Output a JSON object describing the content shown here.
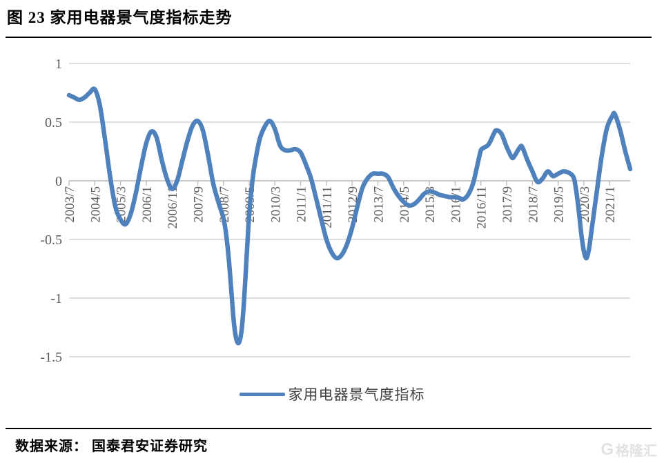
{
  "title": "图 23 家用电器景气度指标走势",
  "legend": {
    "label": "家用电器景气度指标"
  },
  "footer": {
    "source": "数据来源： 国泰君安证券研究"
  },
  "watermark": {
    "logo": "G",
    "text": "格隆汇"
  },
  "colors": {
    "line": "#4f81bd",
    "grid": "#d9d9d9",
    "zero_axis": "#bfbfbf",
    "tick_text": "#595959",
    "legend_text": "#404040",
    "watermark": "#e2e2e2"
  },
  "chart_data": {
    "type": "line",
    "title": "家用电器景气度指标走势",
    "xlabel": "",
    "ylabel": "",
    "ylim": [
      -1.5,
      1
    ],
    "yticks": [
      1,
      0.5,
      0,
      -0.5,
      -1,
      -1.5
    ],
    "grid": "horizontal",
    "legend_position": "bottom",
    "x_range": [
      "2003/7",
      "2021/9"
    ],
    "x_tick_labels": [
      "2003/7",
      "2004/5",
      "2005/3",
      "2006/1",
      "2006/11",
      "2007/9",
      "2008/7",
      "2009/5",
      "2010/3",
      "2011/1",
      "2011/11",
      "2012/9",
      "2013/7",
      "2014/5",
      "2015/3",
      "2016/1",
      "2016/11",
      "2017/9",
      "2018/7",
      "2019/5",
      "2020/3",
      "2021/1"
    ],
    "series": [
      {
        "name": "家用电器景气度指标",
        "points": [
          [
            "2003/7",
            0.73
          ],
          [
            "2003/9",
            0.71
          ],
          [
            "2003/11",
            0.69
          ],
          [
            "2004/1",
            0.71
          ],
          [
            "2004/3",
            0.75
          ],
          [
            "2004/5",
            0.78
          ],
          [
            "2004/7",
            0.64
          ],
          [
            "2004/9",
            0.35
          ],
          [
            "2004/11",
            0.03
          ],
          [
            "2005/1",
            -0.22
          ],
          [
            "2005/3",
            -0.33
          ],
          [
            "2005/5",
            -0.37
          ],
          [
            "2005/7",
            -0.28
          ],
          [
            "2005/9",
            -0.1
          ],
          [
            "2005/11",
            0.12
          ],
          [
            "2006/1",
            0.32
          ],
          [
            "2006/3",
            0.42
          ],
          [
            "2006/5",
            0.37
          ],
          [
            "2006/7",
            0.18
          ],
          [
            "2006/9",
            0.02
          ],
          [
            "2006/11",
            -0.07
          ],
          [
            "2007/1",
            0.0
          ],
          [
            "2007/3",
            0.17
          ],
          [
            "2007/5",
            0.34
          ],
          [
            "2007/7",
            0.47
          ],
          [
            "2007/9",
            0.51
          ],
          [
            "2007/11",
            0.43
          ],
          [
            "2008/1",
            0.22
          ],
          [
            "2008/3",
            -0.02
          ],
          [
            "2008/5",
            -0.18
          ],
          [
            "2008/7",
            -0.32
          ],
          [
            "2008/8",
            -0.45
          ],
          [
            "2008/9",
            -0.65
          ],
          [
            "2008/10",
            -0.92
          ],
          [
            "2008/11",
            -1.2
          ],
          [
            "2008/12",
            -1.35
          ],
          [
            "2009/1",
            -1.38
          ],
          [
            "2009/2",
            -1.28
          ],
          [
            "2009/3",
            -1.02
          ],
          [
            "2009/4",
            -0.65
          ],
          [
            "2009/5",
            -0.28
          ],
          [
            "2009/6",
            -0.05
          ],
          [
            "2009/7",
            0.12
          ],
          [
            "2009/9",
            0.35
          ],
          [
            "2009/11",
            0.46
          ],
          [
            "2010/1",
            0.51
          ],
          [
            "2010/3",
            0.44
          ],
          [
            "2010/5",
            0.3
          ],
          [
            "2010/7",
            0.26
          ],
          [
            "2010/9",
            0.26
          ],
          [
            "2010/11",
            0.27
          ],
          [
            "2011/1",
            0.24
          ],
          [
            "2011/3",
            0.14
          ],
          [
            "2011/5",
            0.02
          ],
          [
            "2011/7",
            -0.15
          ],
          [
            "2011/9",
            -0.33
          ],
          [
            "2011/11",
            -0.5
          ],
          [
            "2012/1",
            -0.61
          ],
          [
            "2012/3",
            -0.66
          ],
          [
            "2012/5",
            -0.63
          ],
          [
            "2012/7",
            -0.54
          ],
          [
            "2012/9",
            -0.4
          ],
          [
            "2012/11",
            -0.22
          ],
          [
            "2013/1",
            -0.06
          ],
          [
            "2013/3",
            0.02
          ],
          [
            "2013/5",
            0.06
          ],
          [
            "2013/7",
            0.06
          ],
          [
            "2013/9",
            0.06
          ],
          [
            "2013/11",
            0.03
          ],
          [
            "2014/1",
            -0.06
          ],
          [
            "2014/3",
            -0.13
          ],
          [
            "2014/5",
            -0.18
          ],
          [
            "2014/7",
            -0.21
          ],
          [
            "2014/9",
            -0.2
          ],
          [
            "2014/11",
            -0.16
          ],
          [
            "2015/1",
            -0.11
          ],
          [
            "2015/3",
            -0.09
          ],
          [
            "2015/5",
            -0.1
          ],
          [
            "2015/7",
            -0.12
          ],
          [
            "2015/9",
            -0.13
          ],
          [
            "2015/11",
            -0.14
          ],
          [
            "2016/1",
            -0.14
          ],
          [
            "2016/3",
            -0.15
          ],
          [
            "2016/4",
            -0.16
          ],
          [
            "2016/6",
            -0.12
          ],
          [
            "2016/8",
            -0.02
          ],
          [
            "2016/10",
            0.17
          ],
          [
            "2016/11",
            0.26
          ],
          [
            "2016/12",
            0.28
          ],
          [
            "2017/2",
            0.31
          ],
          [
            "2017/4",
            0.4
          ],
          [
            "2017/5",
            0.43
          ],
          [
            "2017/7",
            0.4
          ],
          [
            "2017/9",
            0.29
          ],
          [
            "2017/11",
            0.2
          ],
          [
            "2017/12",
            0.21
          ],
          [
            "2018/2",
            0.28
          ],
          [
            "2018/3",
            0.29
          ],
          [
            "2018/5",
            0.18
          ],
          [
            "2018/7",
            0.08
          ],
          [
            "2018/9",
            -0.01
          ],
          [
            "2018/11",
            0.02
          ],
          [
            "2019/1",
            0.08
          ],
          [
            "2019/3",
            0.04
          ],
          [
            "2019/5",
            0.06
          ],
          [
            "2019/7",
            0.08
          ],
          [
            "2019/9",
            0.07
          ],
          [
            "2019/11",
            0.03
          ],
          [
            "2019/12",
            -0.08
          ],
          [
            "2020/1",
            -0.25
          ],
          [
            "2020/2",
            -0.45
          ],
          [
            "2020/3",
            -0.6
          ],
          [
            "2020/4",
            -0.66
          ],
          [
            "2020/5",
            -0.58
          ],
          [
            "2020/6",
            -0.42
          ],
          [
            "2020/8",
            -0.1
          ],
          [
            "2020/10",
            0.22
          ],
          [
            "2020/12",
            0.45
          ],
          [
            "2021/2",
            0.55
          ],
          [
            "2021/3",
            0.57
          ],
          [
            "2021/5",
            0.44
          ],
          [
            "2021/7",
            0.26
          ],
          [
            "2021/9",
            0.1
          ]
        ]
      }
    ]
  }
}
